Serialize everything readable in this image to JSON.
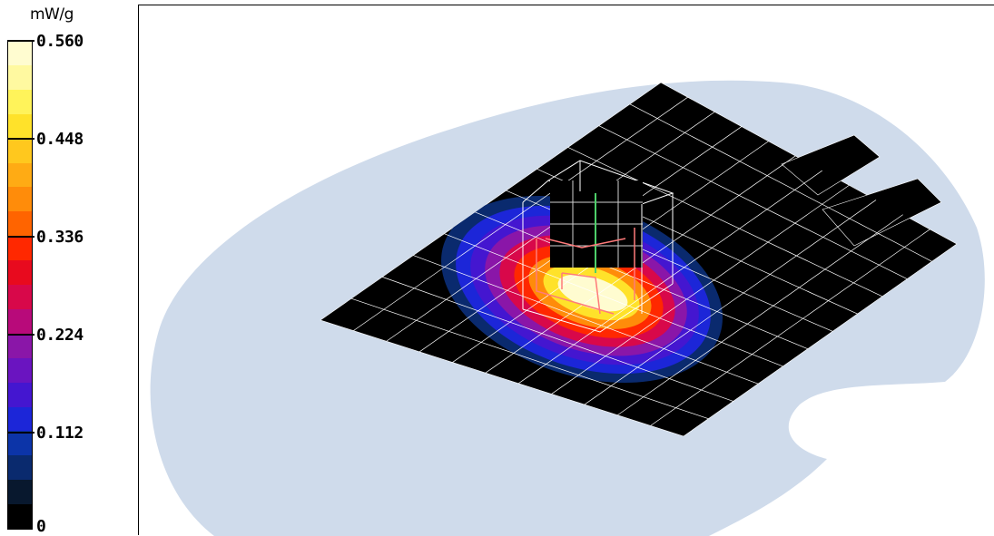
{
  "legend": {
    "unit": "mW/g",
    "ticks": [
      "0.560",
      "0.448",
      "0.336",
      "0.224",
      "0.112",
      "0"
    ],
    "band_colors": [
      "#fffcd0",
      "#fff9a0",
      "#fff35a",
      "#ffe22a",
      "#ffc81e",
      "#ffab14",
      "#ff8c0a",
      "#ff6400",
      "#ff2800",
      "#e80a1e",
      "#d8084a",
      "#b80a7a",
      "#8a16a8",
      "#6a14c0",
      "#4416d0",
      "#1c26d8",
      "#0c34a8",
      "#0a2a6e",
      "#08182e",
      "#000000"
    ]
  },
  "diagram": {
    "phantom_color": "#cfdbeb",
    "grid_plane_color": "#000000",
    "grid_line_color": "#ffffff",
    "hotspot_colors": [
      "#0a2a6e",
      "#1c26d8",
      "#4416d0",
      "#8a16a8",
      "#d8084a",
      "#ff2800",
      "#ff8c0a",
      "#ffe22a",
      "#fffcd0"
    ]
  }
}
